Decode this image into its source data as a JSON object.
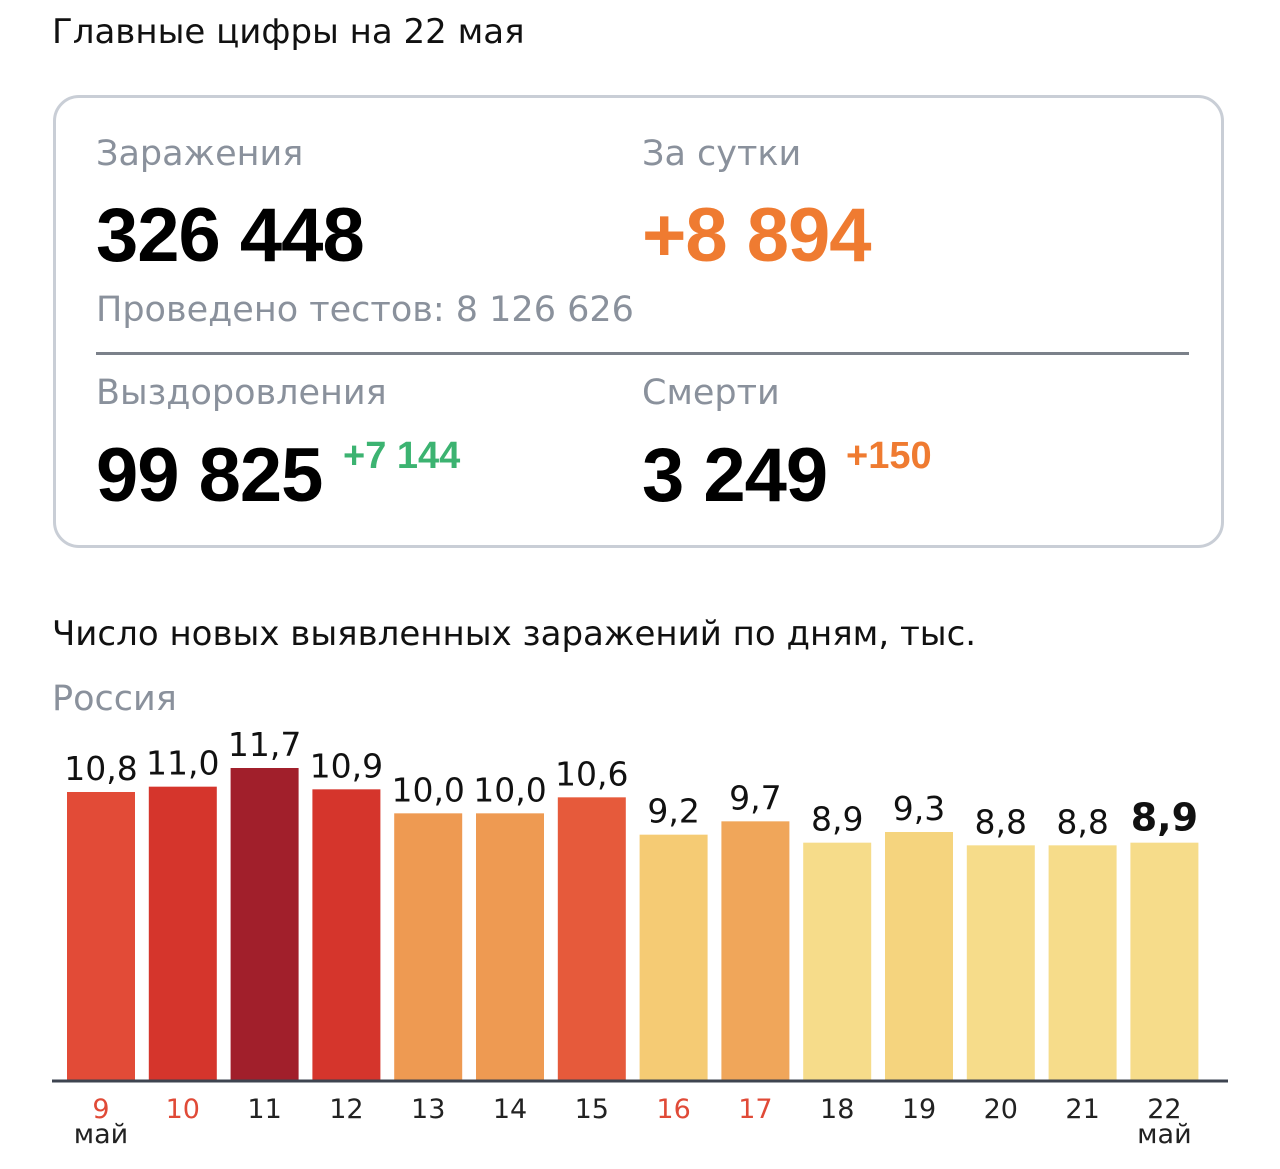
{
  "header": {
    "title": "Главные цифры на 22 мая"
  },
  "summary": {
    "infections_label": "Заражения",
    "infections_value": "326 448",
    "daily_label": "За сутки",
    "daily_value": "+8 894",
    "tests_text": "Проведено тестов: 8 126 626",
    "recoveries_label": "Выздоровления",
    "recoveries_value": "99 825",
    "recoveries_delta": "+7 144",
    "deaths_label": "Смерти",
    "deaths_value": "3 249",
    "deaths_delta": "+150"
  },
  "colors": {
    "orange_accent": "#ef7b31",
    "green_accent": "#3cb371",
    "holiday_tick": "#e04a37",
    "axis": "#3d4450"
  },
  "chart_data": {
    "type": "bar",
    "title": "Число новых выявленных заражений по дням, тыс.",
    "subtitle": "Россия",
    "categories": [
      "9",
      "10",
      "11",
      "12",
      "13",
      "14",
      "15",
      "16",
      "17",
      "18",
      "19",
      "20",
      "21",
      "22"
    ],
    "month_labels": {
      "first": "май",
      "last": "май"
    },
    "values": [
      10.8,
      11.0,
      11.7,
      10.9,
      10.0,
      10.0,
      10.6,
      9.2,
      9.7,
      8.9,
      9.3,
      8.8,
      8.8,
      8.9
    ],
    "value_labels": [
      "10,8",
      "11,0",
      "11,7",
      "10,9",
      "10,0",
      "10,0",
      "10,6",
      "9,2",
      "9,7",
      "8,9",
      "9,3",
      "8,8",
      "8,8",
      "8,9"
    ],
    "bar_colors": [
      "#e24b37",
      "#d5352c",
      "#a11f2b",
      "#d5352c",
      "#ee9a52",
      "#ee9a52",
      "#e65a3b",
      "#f5cb74",
      "#f0a65a",
      "#f6dc8a",
      "#f5d47e",
      "#f6dc8a",
      "#f6dc8a",
      "#f6dc8a"
    ],
    "red_ticks": [
      "9",
      "10",
      "16",
      "17"
    ],
    "highlight_last": true,
    "ylim": [
      0,
      11.7
    ]
  }
}
